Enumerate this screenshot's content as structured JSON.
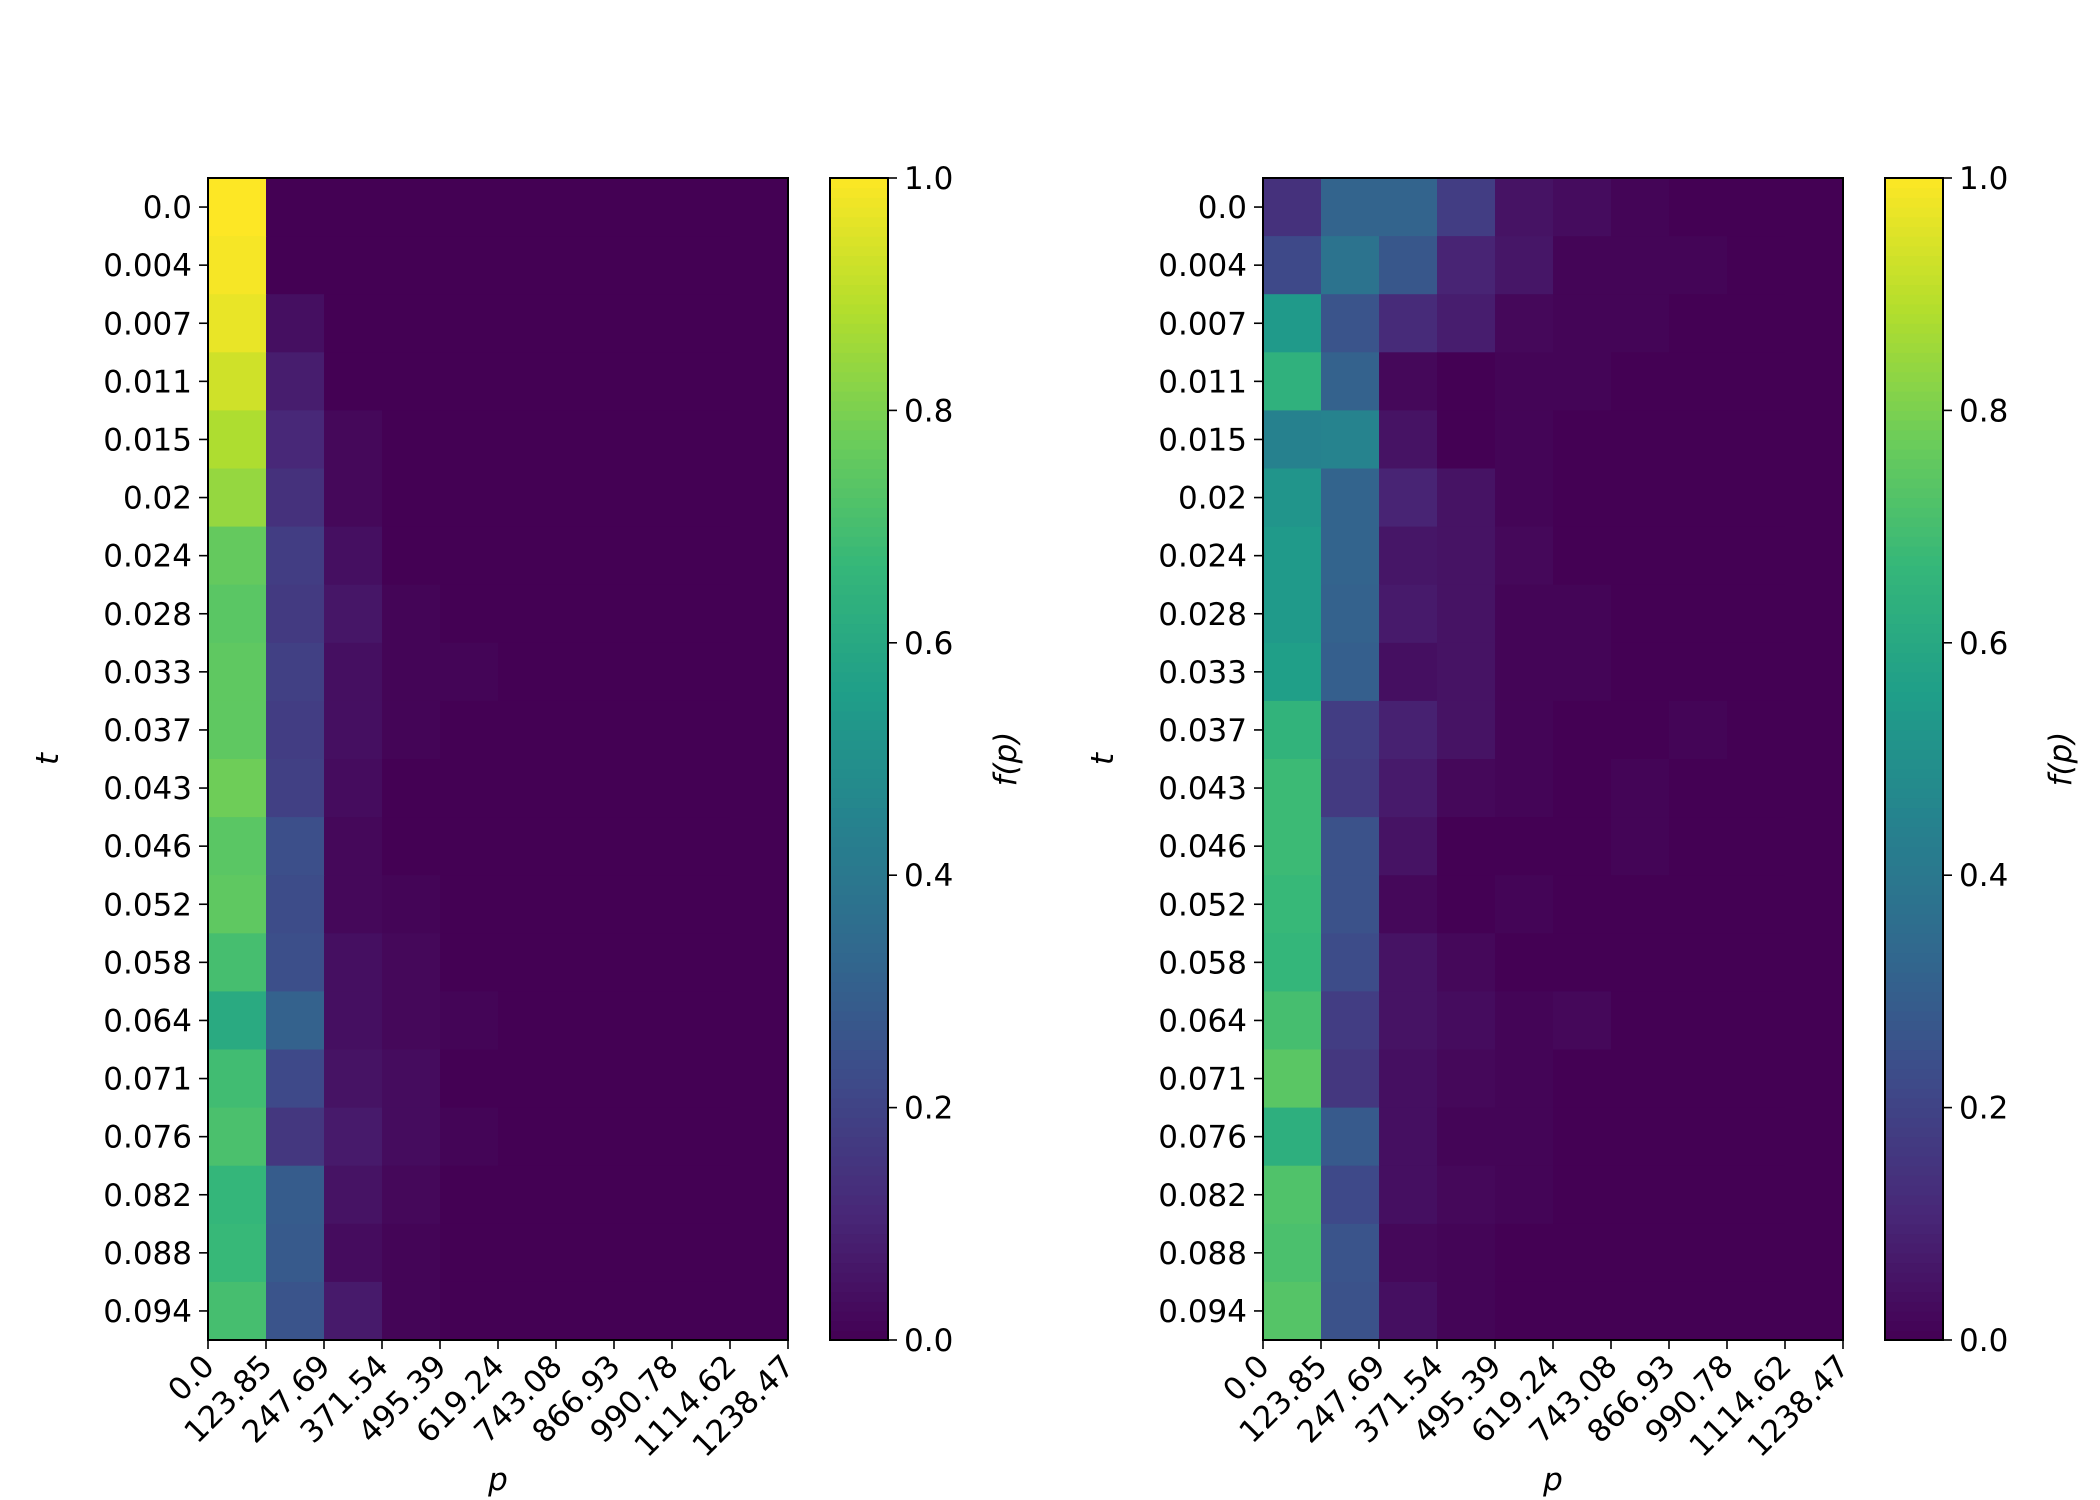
{
  "chart_data": [
    {
      "type": "heatmap",
      "title": "",
      "xlabel": "p",
      "ylabel": "t",
      "x_ticks": [
        "0.0",
        "123.85",
        "247.69",
        "371.54",
        "495.39",
        "619.24",
        "743.08",
        "866.93",
        "990.78",
        "1114.62",
        "1238.47"
      ],
      "y_ticks": [
        "0.0",
        "0.004",
        "0.007",
        "0.011",
        "0.015",
        "0.02",
        "0.024",
        "0.028",
        "0.033",
        "0.037",
        "0.043",
        "0.046",
        "0.052",
        "0.058",
        "0.064",
        "0.071",
        "0.076",
        "0.082",
        "0.088",
        "0.094"
      ],
      "colorbar": {
        "label": "f(p)",
        "ticks": [
          "0.0",
          "0.2",
          "0.4",
          "0.6",
          "0.8",
          "1.0"
        ],
        "range": [
          0,
          1
        ],
        "colormap": "viridis"
      },
      "values": [
        [
          1.0,
          0.0,
          0.0,
          0.0,
          0.0,
          0.0,
          0.0,
          0.0,
          0.0
        ],
        [
          0.99,
          0.0,
          0.0,
          0.0,
          0.0,
          0.0,
          0.0,
          0.0,
          0.0
        ],
        [
          0.97,
          0.04,
          0.0,
          0.0,
          0.0,
          0.0,
          0.0,
          0.0,
          0.0
        ],
        [
          0.93,
          0.08,
          0.0,
          0.0,
          0.0,
          0.0,
          0.0,
          0.0,
          0.0
        ],
        [
          0.88,
          0.11,
          0.02,
          0.0,
          0.0,
          0.0,
          0.0,
          0.0,
          0.0
        ],
        [
          0.84,
          0.14,
          0.02,
          0.0,
          0.0,
          0.0,
          0.0,
          0.0,
          0.0
        ],
        [
          0.76,
          0.18,
          0.04,
          0.0,
          0.0,
          0.0,
          0.0,
          0.0,
          0.0
        ],
        [
          0.74,
          0.17,
          0.06,
          0.01,
          0.0,
          0.0,
          0.0,
          0.0,
          0.0
        ],
        [
          0.75,
          0.19,
          0.04,
          0.01,
          0.01,
          0.0,
          0.0,
          0.0,
          0.0
        ],
        [
          0.75,
          0.18,
          0.04,
          0.01,
          0.0,
          0.0,
          0.0,
          0.0,
          0.0
        ],
        [
          0.78,
          0.19,
          0.03,
          0.0,
          0.0,
          0.0,
          0.0,
          0.0,
          0.0
        ],
        [
          0.74,
          0.24,
          0.02,
          0.0,
          0.0,
          0.0,
          0.0,
          0.0,
          0.0
        ],
        [
          0.75,
          0.23,
          0.02,
          0.01,
          0.0,
          0.0,
          0.0,
          0.0,
          0.0
        ],
        [
          0.7,
          0.24,
          0.04,
          0.02,
          0.0,
          0.0,
          0.0,
          0.0,
          0.0
        ],
        [
          0.61,
          0.31,
          0.04,
          0.02,
          0.01,
          0.0,
          0.0,
          0.0,
          0.0
        ],
        [
          0.69,
          0.22,
          0.05,
          0.03,
          0.0,
          0.0,
          0.0,
          0.0,
          0.0
        ],
        [
          0.71,
          0.16,
          0.07,
          0.03,
          0.01,
          0.0,
          0.0,
          0.0,
          0.0
        ],
        [
          0.66,
          0.29,
          0.05,
          0.02,
          0.0,
          0.0,
          0.0,
          0.0,
          0.0
        ],
        [
          0.67,
          0.28,
          0.03,
          0.01,
          0.0,
          0.0,
          0.0,
          0.0,
          0.0
        ],
        [
          0.7,
          0.26,
          0.07,
          0.01,
          0.0,
          0.0,
          0.0,
          0.0,
          0.0
        ]
      ]
    },
    {
      "type": "heatmap",
      "title": "",
      "xlabel": "p",
      "ylabel": "t",
      "x_ticks": [
        "0.0",
        "123.85",
        "247.69",
        "371.54",
        "495.39",
        "619.24",
        "743.08",
        "866.93",
        "990.78",
        "1114.62",
        "1238.47"
      ],
      "y_ticks": [
        "0.0",
        "0.004",
        "0.007",
        "0.011",
        "0.015",
        "0.02",
        "0.024",
        "0.028",
        "0.033",
        "0.037",
        "0.043",
        "0.046",
        "0.052",
        "0.058",
        "0.064",
        "0.071",
        "0.076",
        "0.082",
        "0.088",
        "0.094"
      ],
      "colorbar": {
        "label": "f(p)",
        "ticks": [
          "0.0",
          "0.2",
          "0.4",
          "0.6",
          "0.8",
          "1.0"
        ],
        "range": [
          0,
          1
        ],
        "colormap": "viridis"
      },
      "values": [
        [
          0.14,
          0.32,
          0.32,
          0.18,
          0.05,
          0.03,
          0.01,
          0.0,
          0.0
        ],
        [
          0.22,
          0.38,
          0.27,
          0.1,
          0.06,
          0.01,
          0.01,
          0.01,
          0.0
        ],
        [
          0.54,
          0.26,
          0.12,
          0.08,
          0.02,
          0.01,
          0.01,
          0.0,
          0.0
        ],
        [
          0.64,
          0.31,
          0.02,
          0.0,
          0.01,
          0.01,
          0.0,
          0.0,
          0.0
        ],
        [
          0.44,
          0.45,
          0.05,
          0.0,
          0.01,
          0.0,
          0.0,
          0.0,
          0.0
        ],
        [
          0.52,
          0.32,
          0.1,
          0.05,
          0.01,
          0.0,
          0.0,
          0.0,
          0.0
        ],
        [
          0.54,
          0.32,
          0.06,
          0.05,
          0.02,
          0.0,
          0.0,
          0.0,
          0.0
        ],
        [
          0.54,
          0.31,
          0.07,
          0.05,
          0.01,
          0.01,
          0.0,
          0.0,
          0.0
        ],
        [
          0.56,
          0.3,
          0.04,
          0.05,
          0.01,
          0.01,
          0.0,
          0.0,
          0.0
        ],
        [
          0.65,
          0.18,
          0.09,
          0.05,
          0.01,
          0.0,
          0.0,
          0.01,
          0.0
        ],
        [
          0.68,
          0.17,
          0.07,
          0.02,
          0.01,
          0.0,
          0.01,
          0.0,
          0.0
        ],
        [
          0.68,
          0.25,
          0.05,
          0.0,
          0.0,
          0.0,
          0.01,
          0.0,
          0.0
        ],
        [
          0.67,
          0.25,
          0.02,
          0.0,
          0.01,
          0.0,
          0.0,
          0.0,
          0.0
        ],
        [
          0.66,
          0.23,
          0.05,
          0.02,
          0.0,
          0.0,
          0.0,
          0.0,
          0.0
        ],
        [
          0.7,
          0.18,
          0.05,
          0.03,
          0.01,
          0.02,
          0.0,
          0.0,
          0.0
        ],
        [
          0.74,
          0.16,
          0.04,
          0.02,
          0.01,
          0.0,
          0.0,
          0.0,
          0.0
        ],
        [
          0.63,
          0.28,
          0.04,
          0.01,
          0.01,
          0.0,
          0.0,
          0.0,
          0.0
        ],
        [
          0.72,
          0.22,
          0.04,
          0.02,
          0.01,
          0.0,
          0.0,
          0.0,
          0.0
        ],
        [
          0.71,
          0.26,
          0.02,
          0.01,
          0.0,
          0.0,
          0.0,
          0.0,
          0.0
        ],
        [
          0.73,
          0.25,
          0.04,
          0.01,
          0.0,
          0.0,
          0.0,
          0.0,
          0.0
        ]
      ]
    }
  ]
}
